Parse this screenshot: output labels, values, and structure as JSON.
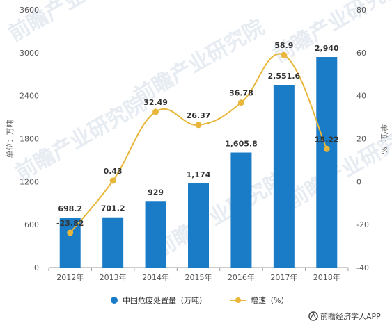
{
  "chart_data": {
    "type": "bar",
    "categories": [
      "2012年",
      "2013年",
      "2014年",
      "2015年",
      "2016年",
      "2017年",
      "2018年"
    ],
    "series": [
      {
        "name": "中国危废处置量（万吨）",
        "type": "bar",
        "axis": "left",
        "values": [
          698.2,
          701.2,
          929,
          1174,
          1605.8,
          2551.6,
          2940
        ],
        "labels": [
          "698.2",
          "701.2",
          "929",
          "1,174",
          "1,605.8",
          "2,551.6",
          "2,940"
        ],
        "color": "#1a7cc7"
      },
      {
        "name": "增速（%）",
        "type": "line",
        "axis": "right",
        "values": [
          -23.82,
          0.43,
          32.49,
          26.37,
          36.78,
          58.9,
          15.22
        ],
        "labels": [
          "-23.82",
          "0.43",
          "32.49",
          "26.37",
          "36.78",
          "58.9",
          "15.22"
        ],
        "color": "#e8b63a"
      }
    ],
    "ylabel": "单位：万吨",
    "y2label": "单位：%",
    "ylim": [
      0,
      3600
    ],
    "y2lim": [
      -40,
      80
    ],
    "yticks": [
      "0",
      "600",
      "1200",
      "1800",
      "2400",
      "3000",
      "3600"
    ],
    "y2ticks": [
      "-40",
      "-20",
      "0",
      "20",
      "40",
      "60",
      "80"
    ],
    "legend_position": "bottom",
    "grid": false
  },
  "watermark": "前瞻产业研究院",
  "source": "前瞻经济学人APP"
}
